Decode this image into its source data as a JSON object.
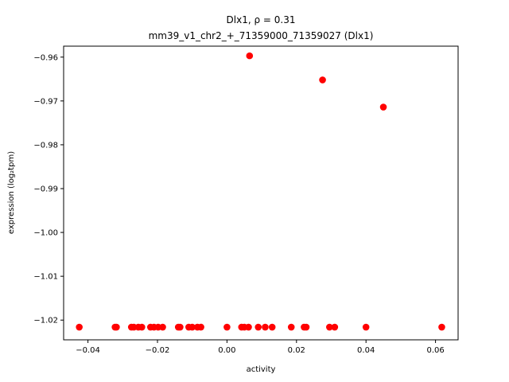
{
  "chart_data": {
    "type": "scatter",
    "title": "Dlx1, ρ = 0.31",
    "subtitle": "mm39_v1_chr2_+_71359000_71359027 (Dlx1)",
    "xlabel": "activity",
    "ylabel": "expression (log₂tpm)",
    "xlim": [
      -0.047,
      0.0665
    ],
    "ylim": [
      -1.0245,
      -0.9575
    ],
    "xticks": [
      -0.04,
      -0.02,
      0.0,
      0.02,
      0.04,
      0.06
    ],
    "xtick_labels": [
      "−0.04",
      "−0.02",
      "0.00",
      "0.02",
      "0.04",
      "0.06"
    ],
    "yticks": [
      -0.96,
      -0.97,
      -0.98,
      -0.99,
      -1.0,
      -1.01,
      -1.02
    ],
    "ytick_labels": [
      "−0.96",
      "−0.97",
      "−0.98",
      "−0.99",
      "−1.00",
      "−1.01",
      "−1.02"
    ],
    "grid": false,
    "marker_color": "#ff0000",
    "points": [
      {
        "x": -0.0425,
        "y": -1.0216
      },
      {
        "x": -0.0322,
        "y": -1.0216
      },
      {
        "x": -0.0318,
        "y": -1.0216
      },
      {
        "x": -0.0275,
        "y": -1.0216
      },
      {
        "x": -0.0268,
        "y": -1.0216
      },
      {
        "x": -0.0255,
        "y": -1.0216
      },
      {
        "x": -0.0245,
        "y": -1.0216
      },
      {
        "x": -0.022,
        "y": -1.0216
      },
      {
        "x": -0.021,
        "y": -1.0216
      },
      {
        "x": -0.0198,
        "y": -1.0216
      },
      {
        "x": -0.0185,
        "y": -1.0216
      },
      {
        "x": -0.014,
        "y": -1.0216
      },
      {
        "x": -0.0135,
        "y": -1.0216
      },
      {
        "x": -0.011,
        "y": -1.0216
      },
      {
        "x": -0.01,
        "y": -1.0216
      },
      {
        "x": -0.0085,
        "y": -1.0216
      },
      {
        "x": -0.0075,
        "y": -1.0216
      },
      {
        "x": 0.0,
        "y": -1.0216
      },
      {
        "x": 0.0042,
        "y": -1.0216
      },
      {
        "x": 0.005,
        "y": -1.0216
      },
      {
        "x": 0.0062,
        "y": -1.0216
      },
      {
        "x": 0.009,
        "y": -1.0216
      },
      {
        "x": 0.011,
        "y": -1.0216
      },
      {
        "x": 0.013,
        "y": -1.0216
      },
      {
        "x": 0.0185,
        "y": -1.0216
      },
      {
        "x": 0.0222,
        "y": -1.0216
      },
      {
        "x": 0.0228,
        "y": -1.0216
      },
      {
        "x": 0.0295,
        "y": -1.0216
      },
      {
        "x": 0.031,
        "y": -1.0216
      },
      {
        "x": 0.04,
        "y": -1.0216
      },
      {
        "x": 0.0618,
        "y": -1.0216
      },
      {
        "x": 0.0065,
        "y": -0.9597
      },
      {
        "x": 0.0275,
        "y": -0.9652
      },
      {
        "x": 0.045,
        "y": -0.9714
      }
    ]
  }
}
